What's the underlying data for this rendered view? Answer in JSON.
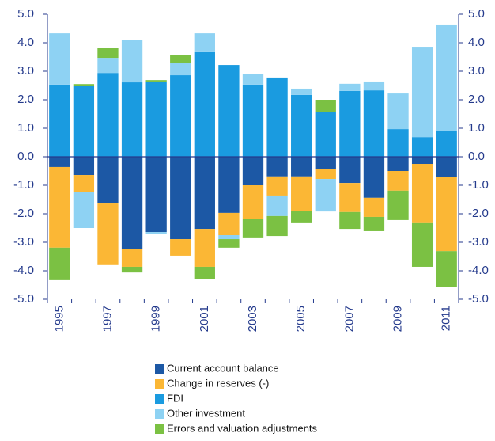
{
  "chart_data": {
    "type": "stacked_bar",
    "categories": [
      "1995",
      null,
      "1997",
      null,
      "1999",
      null,
      "2001",
      null,
      "2003",
      null,
      "2005",
      null,
      "2007",
      null,
      "2009",
      null,
      "2011"
    ],
    "series": [
      {
        "name": "Current account balance",
        "color": "#1c58a5",
        "values": [
          -0.36,
          -0.64,
          -1.64,
          -3.25,
          -2.64,
          -2.89,
          -2.53,
          -1.97,
          -1.0,
          -0.69,
          -0.69,
          -0.44,
          -0.92,
          -1.44,
          -0.5,
          -0.25,
          -0.72
        ]
      },
      {
        "name": "Change in reserves (-)",
        "color": "#fbb735",
        "values": [
          -2.83,
          -0.61,
          -2.16,
          -0.61,
          0,
          -0.58,
          -1.33,
          -0.78,
          -1.17,
          -0.67,
          -1.2,
          -0.34,
          -1.02,
          -0.67,
          -0.69,
          -2.08,
          -2.59
        ]
      },
      {
        "name": "FDI",
        "color": "#1a9be0",
        "values": [
          2.53,
          2.5,
          2.94,
          2.61,
          2.64,
          2.86,
          3.67,
          3.22,
          2.53,
          2.78,
          2.17,
          1.58,
          2.31,
          2.33,
          0.97,
          0.69,
          0.89
        ]
      },
      {
        "name": "Other investment",
        "color": "#8ed2f3",
        "values": [
          1.8,
          -1.25,
          0.53,
          1.5,
          -0.08,
          0.44,
          0.66,
          -0.14,
          0.36,
          -0.72,
          0.22,
          -1.14,
          0.25,
          0.31,
          1.25,
          3.17,
          3.75
        ]
      },
      {
        "name": "Errors and valuation adjustments",
        "color": "#7bc143",
        "values": [
          -1.14,
          0.05,
          0.36,
          -0.2,
          0.05,
          0.26,
          -0.42,
          -0.3,
          -0.66,
          -0.7,
          -0.44,
          0.42,
          -0.59,
          -0.5,
          -1.03,
          -1.53,
          -1.27
        ]
      }
    ],
    "ylim": [
      -5,
      5
    ],
    "yticks": [
      {
        "value": -5,
        "label": "-5.0"
      },
      {
        "value": -4,
        "label": "-4.0"
      },
      {
        "value": -3,
        "label": "-3.0"
      },
      {
        "value": -2,
        "label": "-2.0"
      },
      {
        "value": -1,
        "label": "-1.0"
      },
      {
        "value": 0,
        "label": "0.0"
      },
      {
        "value": 1,
        "label": "1.0"
      },
      {
        "value": 2,
        "label": "2.0"
      },
      {
        "value": 3,
        "label": "3.0"
      },
      {
        "value": 4,
        "label": "4.0"
      },
      {
        "value": 5,
        "label": "5.0"
      }
    ]
  }
}
